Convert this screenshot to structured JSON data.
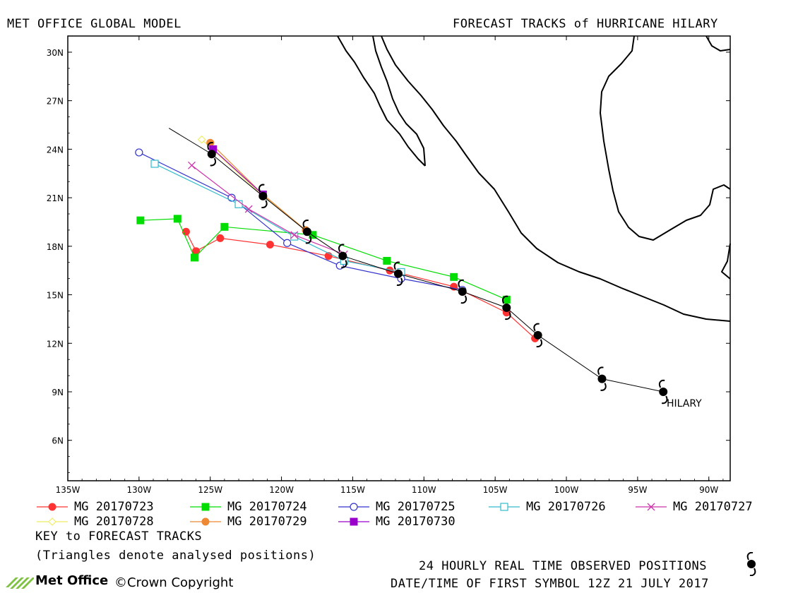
{
  "header": {
    "left_title": "MET OFFICE GLOBAL MODEL",
    "right_title": "FORECAST TRACKS of HURRICANE HILARY"
  },
  "axes": {
    "x_ticks": [
      "135W",
      "130W",
      "125W",
      "120W",
      "115W",
      "110W",
      "105W",
      "100W",
      "95W",
      "90W"
    ],
    "y_ticks": [
      "30N",
      "27N",
      "24N",
      "21N",
      "18N",
      "15N",
      "12N",
      "9N",
      "6N"
    ]
  },
  "storm_label": "HILARY",
  "legend": [
    {
      "label": "MG 20170723",
      "color": "#ff3333",
      "marker": "circle-filled"
    },
    {
      "label": "MG 20170724",
      "color": "#00dd00",
      "marker": "square-filled"
    },
    {
      "label": "MG 20170725",
      "color": "#3333cc",
      "marker": "circle-open"
    },
    {
      "label": "MG 20170726",
      "color": "#33bbcc",
      "marker": "square-open"
    },
    {
      "label": "MG 20170727",
      "color": "#cc33aa",
      "marker": "x"
    },
    {
      "label": "MG 20170728",
      "color": "#eeee66",
      "marker": "diamond-open"
    },
    {
      "label": "MG 20170729",
      "color": "#ee8833",
      "marker": "circle-filled"
    },
    {
      "label": "MG 20170730",
      "color": "#9900cc",
      "marker": "square-filled"
    }
  ],
  "key_title": "KEY to FORECAST TRACKS",
  "key_note": "(Triangles denote analysed positions)",
  "observed_label": "24 HOURLY REAL TIME OBSERVED POSITIONS",
  "first_symbol_label": "DATE/TIME OF FIRST SYMBOL 12Z 21 JULY 2017",
  "logo_text": "Met Office",
  "copyright": "©Crown Copyright",
  "chart_data": {
    "type": "map",
    "extent": {
      "lon": [
        -135,
        -88.5
      ],
      "lat": [
        3.5,
        31
      ]
    },
    "observed_track": [
      [
        -93.2,
        9.0
      ],
      [
        -97.5,
        9.8
      ],
      [
        -102.0,
        12.5
      ],
      [
        -104.2,
        14.2
      ],
      [
        -107.3,
        15.2
      ],
      [
        -111.8,
        16.3
      ],
      [
        -115.7,
        17.4
      ],
      [
        -118.2,
        18.9
      ],
      [
        -121.3,
        21.1
      ],
      [
        -124.9,
        23.7
      ],
      [
        -127.9,
        25.3
      ]
    ],
    "series": [
      {
        "name": "MG 20170723",
        "points": [
          [
            -102.2,
            12.3
          ],
          [
            -104.2,
            13.9
          ],
          [
            -107.9,
            15.5
          ],
          [
            -112.4,
            16.5
          ],
          [
            -116.7,
            17.4
          ],
          [
            -120.8,
            18.1
          ],
          [
            -124.3,
            18.5
          ],
          [
            -126.0,
            17.7
          ],
          [
            -126.7,
            18.9
          ]
        ]
      },
      {
        "name": "MG 20170724",
        "points": [
          [
            -104.2,
            14.7
          ],
          [
            -107.9,
            16.1
          ],
          [
            -112.6,
            17.1
          ],
          [
            -117.8,
            18.7
          ],
          [
            -124.0,
            19.2
          ],
          [
            -126.1,
            17.3
          ],
          [
            -127.3,
            19.7
          ],
          [
            -129.9,
            19.6
          ]
        ]
      },
      {
        "name": "MG 20170725",
        "points": [
          [
            -107.3,
            15.3
          ],
          [
            -111.6,
            16.0
          ],
          [
            -115.9,
            16.8
          ],
          [
            -119.6,
            18.2
          ],
          [
            -123.5,
            21.0
          ],
          [
            -130.0,
            23.8
          ]
        ]
      },
      {
        "name": "MG 20170726",
        "points": [
          [
            -111.6,
            16.4
          ],
          [
            -115.6,
            17.1
          ],
          [
            -119.1,
            18.6
          ],
          [
            -123.0,
            20.6
          ],
          [
            -128.9,
            23.1
          ]
        ]
      },
      {
        "name": "MG 20170727",
        "points": [
          [
            -115.6,
            17.5
          ],
          [
            -119.1,
            18.7
          ],
          [
            -122.3,
            20.3
          ],
          [
            -126.3,
            23.0
          ]
        ]
      },
      {
        "name": "MG 20170728",
        "points": [
          [
            -118.3,
            19.0
          ],
          [
            -121.3,
            21.1
          ],
          [
            -125.6,
            24.6
          ]
        ]
      },
      {
        "name": "MG 20170729",
        "points": [
          [
            -118.3,
            19.0
          ],
          [
            -121.3,
            21.2
          ],
          [
            -125.0,
            24.4
          ]
        ]
      },
      {
        "name": "MG 20170730",
        "points": [
          [
            -121.3,
            21.2
          ],
          [
            -124.8,
            24.0
          ]
        ]
      }
    ]
  }
}
